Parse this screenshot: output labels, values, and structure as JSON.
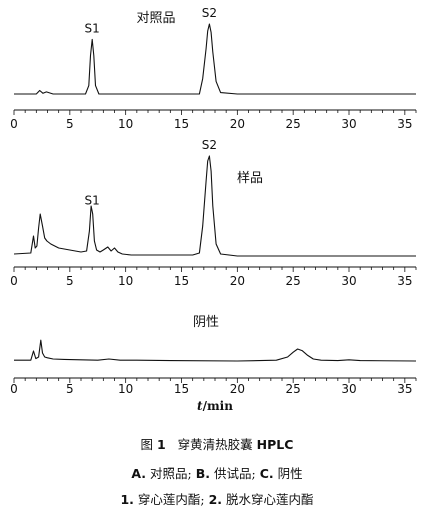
{
  "chart_data": [
    {
      "type": "line",
      "title": "对照品",
      "xlim": [
        0,
        36
      ],
      "x_ticks": [
        0,
        5,
        10,
        15,
        20,
        25,
        30,
        35
      ],
      "peaks": [
        {
          "label": "S1",
          "x": 7.0
        },
        {
          "label": "S2",
          "x": 17.5
        }
      ],
      "series": [
        {
          "x": [
            0,
            2.0,
            2.3,
            2.6,
            2.9,
            3.5,
            6.4,
            6.7,
            6.85,
            7.0,
            7.15,
            7.3,
            7.6,
            9,
            16.6,
            16.9,
            17.2,
            17.35,
            17.5,
            17.65,
            17.8,
            18.1,
            18.5,
            20,
            30,
            36
          ],
          "y": [
            0.0,
            0.0,
            0.05,
            0.01,
            0.03,
            0.0,
            0.0,
            0.12,
            0.55,
            0.78,
            0.55,
            0.12,
            0.0,
            0.0,
            0.0,
            0.22,
            0.65,
            0.9,
            1.0,
            0.88,
            0.6,
            0.18,
            0.02,
            0.0,
            0.0,
            0.0
          ]
        }
      ]
    },
    {
      "type": "line",
      "title": "样品",
      "xlim": [
        0,
        36
      ],
      "x_ticks": [
        0,
        5,
        10,
        15,
        20,
        25,
        30,
        35
      ],
      "peaks": [
        {
          "label": "S1",
          "x": 7.0
        },
        {
          "label": "S2",
          "x": 17.5
        }
      ],
      "series": [
        {
          "x": [
            0,
            1.5,
            1.75,
            1.9,
            2.05,
            2.2,
            2.35,
            2.55,
            2.75,
            2.95,
            3.3,
            4.0,
            5.0,
            6.0,
            6.5,
            6.75,
            6.9,
            7.05,
            7.2,
            7.4,
            7.7,
            8.0,
            8.4,
            8.7,
            9.0,
            9.3,
            9.7,
            10.5,
            12.0,
            14.0,
            16.0,
            16.6,
            16.9,
            17.2,
            17.35,
            17.5,
            17.65,
            17.8,
            18.1,
            18.5,
            20,
            25,
            30,
            36
          ],
          "y": [
            0.02,
            0.03,
            0.2,
            0.08,
            0.1,
            0.28,
            0.42,
            0.3,
            0.18,
            0.15,
            0.12,
            0.08,
            0.06,
            0.04,
            0.05,
            0.25,
            0.5,
            0.42,
            0.15,
            0.06,
            0.04,
            0.06,
            0.09,
            0.05,
            0.08,
            0.04,
            0.02,
            0.01,
            0.01,
            0.01,
            0.01,
            0.03,
            0.3,
            0.75,
            0.95,
            1.0,
            0.85,
            0.5,
            0.12,
            0.02,
            0.0,
            0.0,
            0.0,
            0.0
          ]
        }
      ]
    },
    {
      "type": "line",
      "title": "阴性",
      "xlim": [
        0,
        36
      ],
      "x_ticks": [
        0,
        5,
        10,
        15,
        20,
        25,
        30,
        35
      ],
      "xlabel": "t/min",
      "series": [
        {
          "x": [
            0,
            1.5,
            1.75,
            1.95,
            2.2,
            2.4,
            2.55,
            2.75,
            3.0,
            3.5,
            4.5,
            6.0,
            7.5,
            8.5,
            9.5,
            11,
            14,
            20,
            23.5,
            24.5,
            25.0,
            25.4,
            25.8,
            26.3,
            26.8,
            27.5,
            29,
            30,
            31,
            36
          ],
          "y": [
            0.02,
            0.02,
            0.25,
            0.06,
            0.1,
            0.52,
            0.2,
            0.1,
            0.08,
            0.05,
            0.04,
            0.03,
            0.02,
            0.05,
            0.02,
            0.02,
            0.01,
            0.0,
            0.02,
            0.1,
            0.22,
            0.3,
            0.26,
            0.14,
            0.05,
            0.02,
            0.01,
            0.03,
            0.01,
            0.0
          ]
        }
      ]
    }
  ],
  "caption": {
    "line1_prefix": "图",
    "line1_num": "1",
    "line1_text": "穿黄清热胶囊",
    "line1_bold": "HPLC",
    "line2": [
      {
        "key": "A.",
        "text": "对照品;"
      },
      {
        "key": "B.",
        "text": "供试品;"
      },
      {
        "key": "C.",
        "text": "阴性"
      }
    ],
    "line3": [
      {
        "key": "1.",
        "text": "穿心莲内酯;"
      },
      {
        "key": "2.",
        "text": "脱水穿心莲内酯"
      }
    ]
  }
}
